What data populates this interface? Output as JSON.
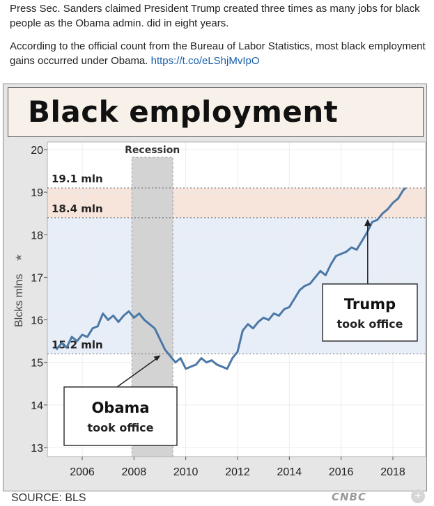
{
  "tweet": {
    "line1": "Press Sec. Sanders claimed President Trump created three times as many jobs for black people as the Obama admin. did in eight years.",
    "line2": "According to the official count from the Bureau of Labor Statistics, most black employment gains occurred under Obama.",
    "link": "https://t.co/eLShjMvIpO"
  },
  "chart_title": "Black employment",
  "source": "SOURCE: BLS",
  "logo": "CNBC",
  "corner_icon": "plus-circle-icon",
  "colors": {
    "line": "#4b78a6",
    "recession": "#d3d3d3",
    "upper_band": "#f7e4da",
    "lower_band": "#e8eef7"
  },
  "chart_data": {
    "type": "line",
    "title": "Black employment",
    "ylabel": "Blcks mlns",
    "xlabel": "",
    "ylim": [
      13,
      20
    ],
    "xlim": [
      2005,
      2018.8
    ],
    "yticks": [
      13,
      14,
      15,
      16,
      17,
      18,
      19,
      20
    ],
    "xticks": [
      2006,
      2008,
      2010,
      2012,
      2014,
      2016,
      2018
    ],
    "recession": {
      "label": "Recession",
      "start": 2007.92,
      "end": 2009.5
    },
    "reference_lines": [
      {
        "value": 19.1,
        "label": "19.1 mln"
      },
      {
        "value": 18.4,
        "label": "18.4 mln"
      },
      {
        "value": 15.2,
        "label": "15.2 mln"
      }
    ],
    "annotations": [
      {
        "title": "Obama",
        "subtitle": "took office",
        "x": 2009.08,
        "y": 15.2
      },
      {
        "title": "Trump",
        "subtitle": "took office",
        "x": 2017.08,
        "y": 18.4
      }
    ],
    "series": [
      {
        "name": "Black employment",
        "x": [
          2005.0,
          2005.2,
          2005.4,
          2005.6,
          2005.8,
          2006.0,
          2006.2,
          2006.4,
          2006.6,
          2006.8,
          2007.0,
          2007.2,
          2007.4,
          2007.6,
          2007.8,
          2008.0,
          2008.2,
          2008.4,
          2008.6,
          2008.8,
          2009.0,
          2009.2,
          2009.4,
          2009.6,
          2009.8,
          2010.0,
          2010.2,
          2010.4,
          2010.6,
          2010.8,
          2011.0,
          2011.2,
          2011.4,
          2011.6,
          2011.8,
          2012.0,
          2012.2,
          2012.4,
          2012.6,
          2012.8,
          2013.0,
          2013.2,
          2013.4,
          2013.6,
          2013.8,
          2014.0,
          2014.2,
          2014.4,
          2014.6,
          2014.8,
          2015.0,
          2015.2,
          2015.4,
          2015.6,
          2015.8,
          2016.0,
          2016.2,
          2016.4,
          2016.6,
          2016.8,
          2017.0,
          2017.2,
          2017.4,
          2017.6,
          2017.8,
          2018.0,
          2018.2,
          2018.4,
          2018.5
        ],
        "values": [
          15.3,
          15.45,
          15.35,
          15.6,
          15.5,
          15.65,
          15.6,
          15.8,
          15.85,
          16.15,
          16.0,
          16.1,
          15.95,
          16.1,
          16.2,
          16.05,
          16.15,
          16.0,
          15.9,
          15.8,
          15.55,
          15.3,
          15.15,
          15.0,
          15.1,
          14.85,
          14.9,
          14.95,
          15.1,
          15.0,
          15.05,
          14.95,
          14.9,
          14.85,
          15.1,
          15.25,
          15.75,
          15.9,
          15.8,
          15.95,
          16.05,
          16.0,
          16.15,
          16.1,
          16.25,
          16.3,
          16.5,
          16.7,
          16.8,
          16.85,
          17.0,
          17.15,
          17.05,
          17.3,
          17.5,
          17.55,
          17.6,
          17.7,
          17.65,
          17.85,
          18.05,
          18.3,
          18.35,
          18.5,
          18.6,
          18.75,
          18.85,
          19.05,
          19.1
        ]
      }
    ]
  }
}
